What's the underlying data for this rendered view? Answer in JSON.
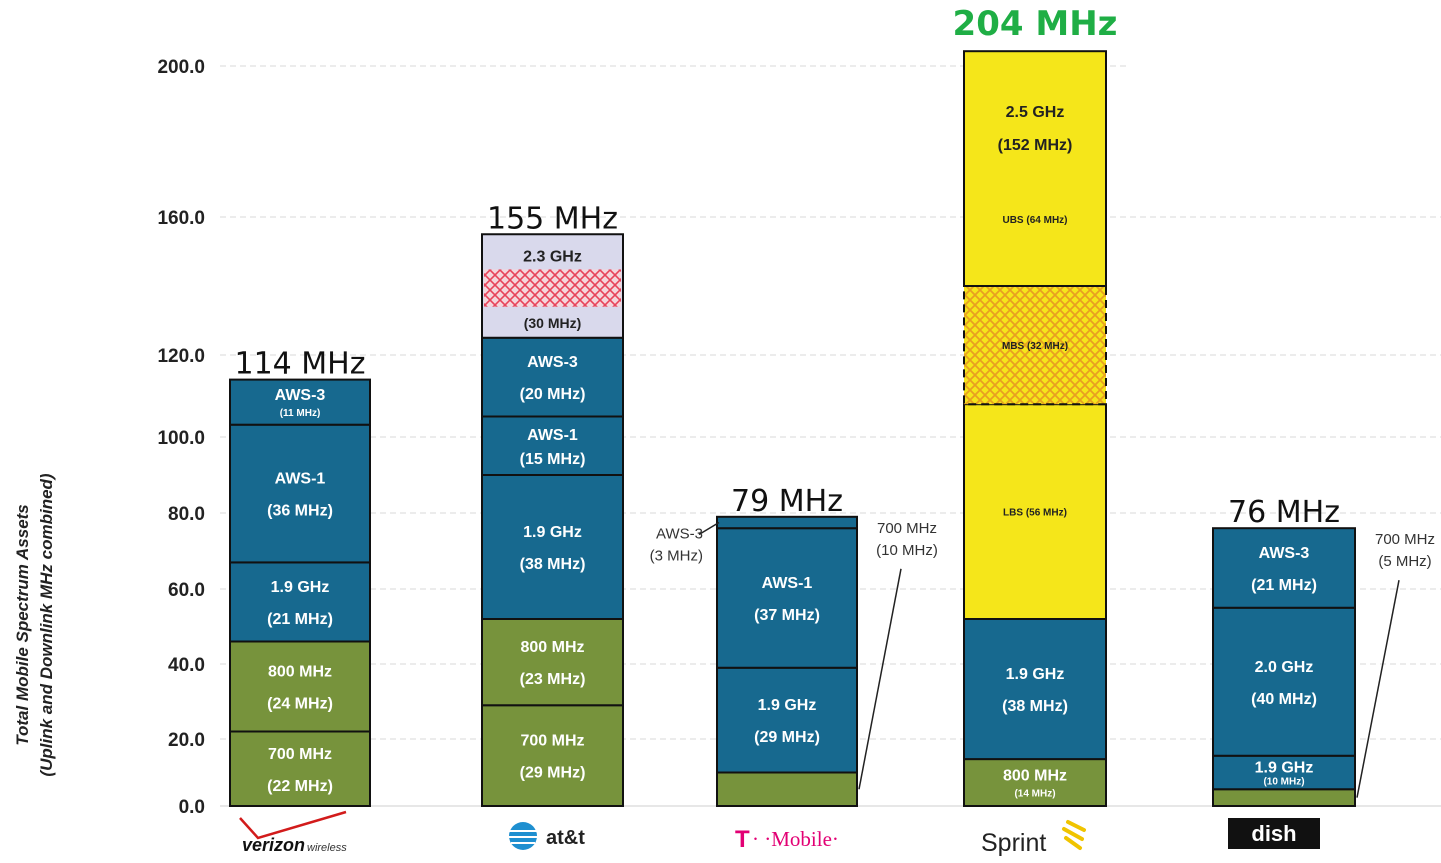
{
  "chart_data": {
    "type": "bar",
    "stacked": true,
    "ylabel": [
      "Total Mobile Spectrum Assets",
      "(Uplink and Downlink MHz combined)"
    ],
    "ylim": [
      0,
      200
    ],
    "ticks": [
      "200.0",
      "160.0",
      "120.0",
      "100.0",
      "80.0",
      "60.0",
      "40.0",
      "20.0",
      "0.0"
    ],
    "tick_values": [
      200,
      160,
      120,
      100,
      80,
      60,
      40,
      20,
      0
    ],
    "grid": true,
    "categories": [
      "Verizon Wireless",
      "AT&T",
      "T-Mobile",
      "Sprint",
      "Dish"
    ],
    "totals": [
      "114 MHz",
      "155 MHz",
      "79 MHz",
      "204 MHz",
      "76 MHz"
    ],
    "total_values": [
      114,
      155,
      79,
      204,
      76
    ],
    "colors": {
      "green": "#77933c",
      "blue": "#17698f",
      "yellow": "#f5e61a",
      "lavender": "#d9d9ec",
      "hatch_red": "#e8435a",
      "hatch_orange": "#e8a021",
      "total_highlight": "#1fae45"
    },
    "carriers": [
      {
        "name": "Verizon Wireless",
        "segments": [
          {
            "value": 22,
            "band": "700 MHz",
            "amount": "(22 MHz)",
            "color": "green"
          },
          {
            "value": 24,
            "band": "800 MHz",
            "amount": "(24 MHz)",
            "color": "green"
          },
          {
            "value": 21,
            "band": "1.9 GHz",
            "amount": "(21 MHz)",
            "color": "blue"
          },
          {
            "value": 36,
            "band": "AWS-1",
            "amount": "(36 MHz)",
            "color": "blue"
          },
          {
            "value": 11,
            "band": "AWS-3",
            "amount": "(11 MHz)",
            "color": "blue",
            "small_amount": true
          }
        ]
      },
      {
        "name": "AT&T",
        "segments": [
          {
            "value": 29,
            "band": "700 MHz",
            "amount": "(29 MHz)",
            "color": "green"
          },
          {
            "value": 23,
            "band": "800 MHz",
            "amount": "(23 MHz)",
            "color": "green"
          },
          {
            "value": 38,
            "band": "1.9 GHz",
            "amount": "(38 MHz)",
            "color": "blue"
          },
          {
            "value": 15,
            "band": "AWS-1",
            "amount": "(15 MHz)",
            "color": "blue"
          },
          {
            "value": 20,
            "band": "AWS-3",
            "amount": "(20 MHz)",
            "color": "blue"
          },
          {
            "value": 30,
            "band": "2.3 GHz",
            "amount": "(30 MHz)",
            "color": "lavender",
            "hatch": "red"
          }
        ]
      },
      {
        "name": "T-Mobile",
        "segments": [
          {
            "value": 10,
            "band": "",
            "amount": "",
            "color": "green"
          },
          {
            "value": 29,
            "band": "1.9 GHz",
            "amount": "(29 MHz)",
            "color": "blue"
          },
          {
            "value": 37,
            "band": "AWS-1",
            "amount": "(37 MHz)",
            "color": "blue"
          },
          {
            "value": 3,
            "band": "",
            "amount": "",
            "color": "blue"
          }
        ],
        "callouts": [
          {
            "text": [
              "AWS-3",
              "(3 MHz)"
            ],
            "segment": 3,
            "side": "left"
          },
          {
            "text": [
              "700 MHz",
              "(10 MHz)"
            ],
            "segment": 0,
            "side": "right"
          }
        ]
      },
      {
        "name": "Sprint",
        "segments": [
          {
            "value": 14,
            "band": "800 MHz",
            "amount": "(14 MHz)",
            "color": "green",
            "small_amount": true
          },
          {
            "value": 38,
            "band": "1.9 GHz",
            "amount": "(38 MHz)",
            "color": "blue"
          },
          {
            "value": 56,
            "band": "LBS (56 MHz)",
            "amount": "",
            "color": "yellow",
            "small_band": true
          },
          {
            "value": 32,
            "band": "MBS (32 MHz)",
            "amount": "",
            "color": "yellow",
            "hatch": "orange",
            "small_band": true
          },
          {
            "value": 64,
            "band": "2.5 GHz",
            "amount": "(152 MHz)",
            "sub": "UBS (64 MHz)",
            "color": "yellow"
          }
        ]
      },
      {
        "name": "Dish",
        "segments": [
          {
            "value": 5,
            "band": "",
            "amount": "",
            "color": "green"
          },
          {
            "value": 10,
            "band": "1.9 GHz",
            "amount": "(10 MHz)",
            "color": "blue",
            "small_amount": true
          },
          {
            "value": 40,
            "band": "2.0 GHz",
            "amount": "(40 MHz)",
            "color": "blue"
          },
          {
            "value": 21,
            "band": "AWS-3",
            "amount": "(21 MHz)",
            "color": "blue"
          }
        ],
        "callouts": [
          {
            "text": [
              "700 MHz",
              "(5 MHz)"
            ],
            "segment": 0,
            "side": "right"
          }
        ]
      }
    ]
  },
  "logos": {
    "verizon": {
      "main": "verizon",
      "sub": "wireless"
    },
    "att": {
      "main": "at&t"
    },
    "tmobile": {
      "t": "T",
      "main": "· ·Mobile·"
    },
    "sprint": {
      "main": "Sprint"
    },
    "dish": {
      "main": "dish"
    }
  }
}
